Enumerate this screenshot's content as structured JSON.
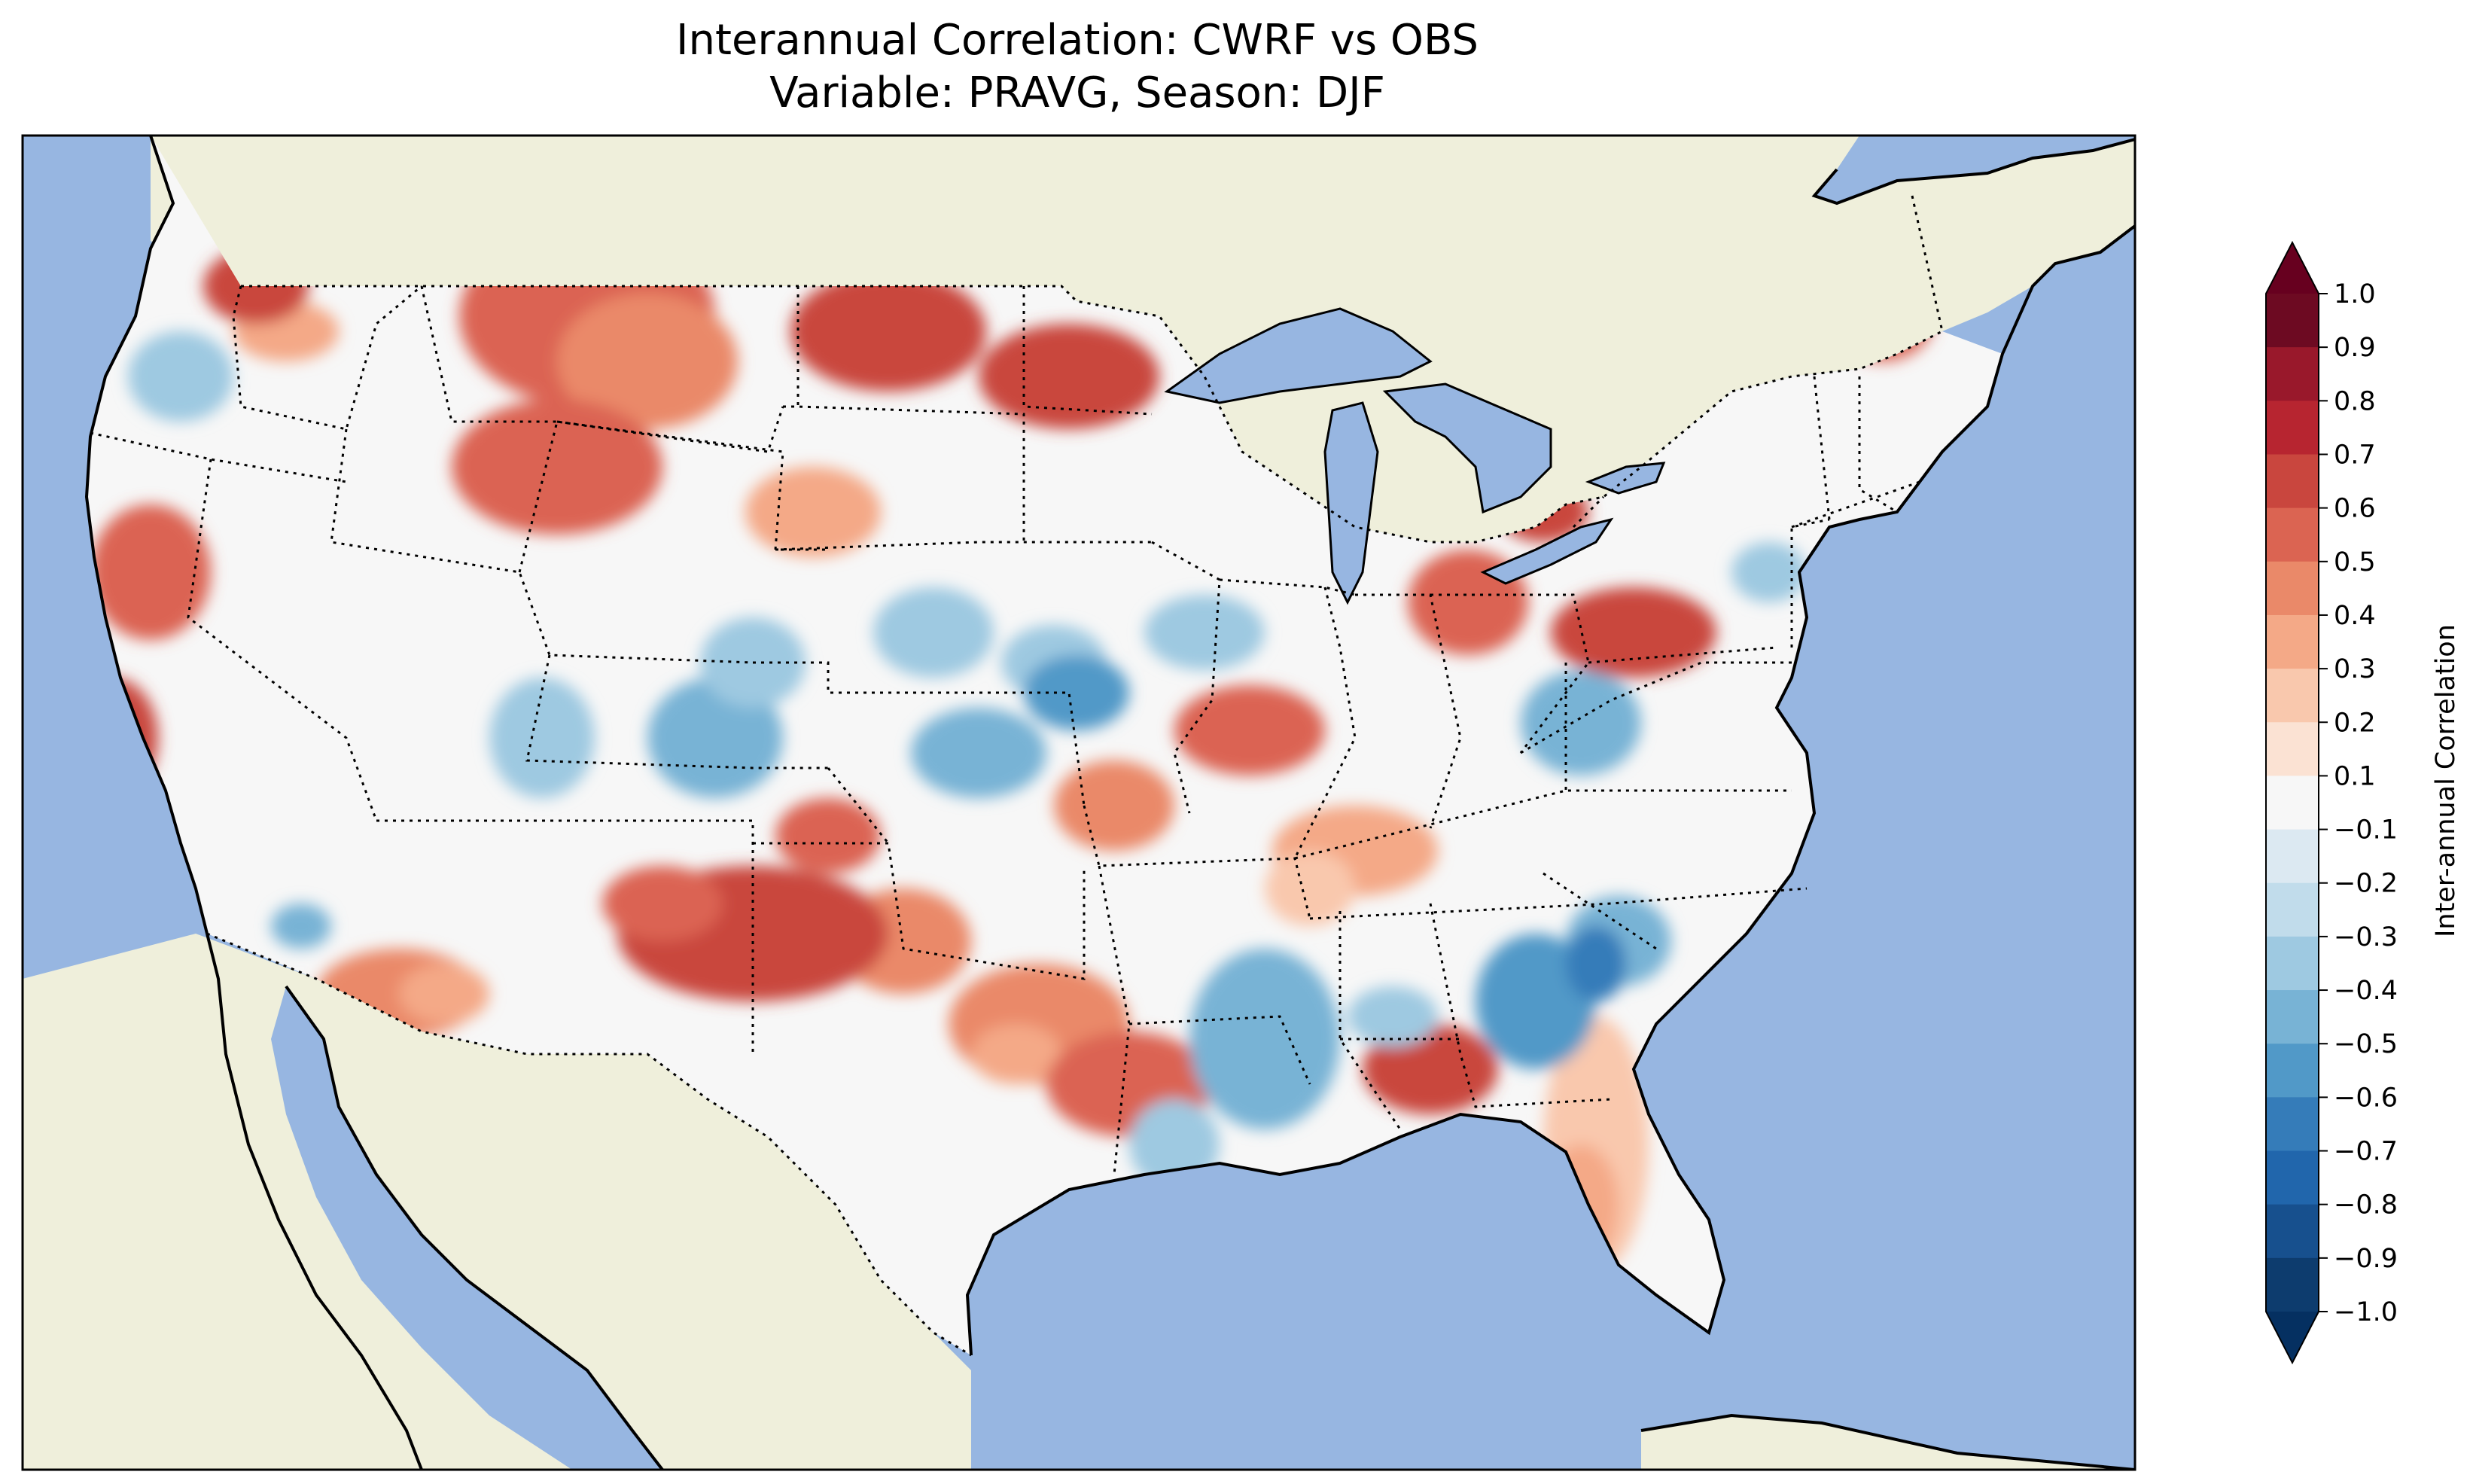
{
  "title_line1": "Interannual Correlation: CWRF vs OBS",
  "title_line2": "Variable: PRAVG, Season: DJF",
  "colorbar": {
    "label": "Inter-annual Correlation",
    "extend": "both",
    "ticks": [
      "1.0",
      "0.9",
      "0.8",
      "0.7",
      "0.6",
      "0.5",
      "0.4",
      "0.3",
      "0.2",
      "0.1",
      "−0.1",
      "−0.2",
      "−0.3",
      "−0.4",
      "−0.5",
      "−0.6",
      "−0.7",
      "−0.8",
      "−0.9",
      "−1.0"
    ],
    "colors": [
      "#6d0a22",
      "#99182b",
      "#b72530",
      "#c9463e",
      "#db6452",
      "#ea8969",
      "#f4a987",
      "#f9c8ad",
      "#fbe2d3",
      "#f7f7f7",
      "#dce9f2",
      "#c1dceb",
      "#9ec9e1",
      "#78b3d5",
      "#5199c8",
      "#357cb9",
      "#2166ac",
      "#17508e",
      "#0d3c6e"
    ],
    "under_color": "#053061",
    "over_color": "#67001f"
  },
  "map": {
    "ocean_color": "#97b6e1",
    "land_color": "#efefdb",
    "lakes_color": "#97b6e1",
    "color_scheme": "RdBu_r"
  }
}
